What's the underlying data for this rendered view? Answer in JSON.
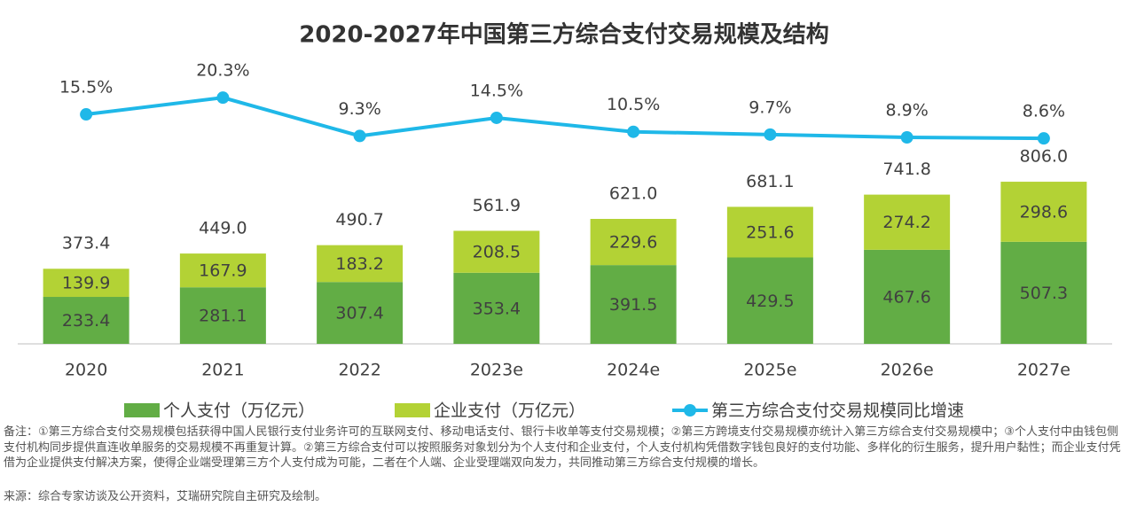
{
  "chart_data": {
    "type": "bar",
    "stacked": true,
    "title": "2020-2027年中国第三方综合支付交易规模及结构",
    "categories": [
      "2020",
      "2021",
      "2022",
      "2023e",
      "2024e",
      "2025e",
      "2026e",
      "2027e"
    ],
    "series": [
      {
        "name": "个人支付（万亿元）",
        "type": "bar",
        "color": "#62ad45",
        "values": [
          233.4,
          281.1,
          307.4,
          353.4,
          391.5,
          429.5,
          467.6,
          507.3
        ]
      },
      {
        "name": "企业支付（万亿元）",
        "type": "bar",
        "color": "#b3d235",
        "values": [
          139.9,
          167.9,
          183.2,
          208.5,
          229.6,
          251.6,
          274.2,
          298.6
        ]
      },
      {
        "name": "第三方综合支付交易规模同比增速",
        "type": "line",
        "axis": "y2",
        "color": "#1fb8e8",
        "values": [
          15.5,
          20.3,
          9.3,
          14.5,
          10.5,
          9.7,
          8.9,
          8.6
        ],
        "value_labels": [
          "15.5%",
          "20.3%",
          "9.3%",
          "14.5%",
          "10.5%",
          "9.7%",
          "8.9%",
          "8.6%"
        ]
      }
    ],
    "totals": {
      "values": [
        373.4,
        449.0,
        490.7,
        561.9,
        621.0,
        681.1,
        741.8,
        806.0
      ],
      "value_labels": [
        "373.4",
        "449.0",
        "490.7",
        "561.9",
        "621.0",
        "681.1",
        "741.8",
        "806.0"
      ]
    },
    "ylim": [
      0,
      1000
    ],
    "y2lim": [
      0,
      30
    ],
    "legend": "bottom",
    "note": "备注：①第三方综合支付交易规模包括获得中国人民银行支付业务许可的互联网支付、移动电话支付、银行卡收单等支付交易规模；②第三方跨境支付交易规模亦统计入第三方综合支付交易规模中；③个人支付中由钱包侧支付机构同步提供直连收单服务的交易规模不再重复计算。②第三方综合支付可以按照服务对象划分为个人支付和企业支付，个人支付机构凭借数字钱包良好的支付功能、多样化的衍生服务，提升用户黏性；而企业支付凭借为企业提供支付解决方案，使得企业端受理第三方个人支付成为可能，二者在个人端、企业受理端双向发力，共同推动第三方综合支付规模的增长。",
    "source": "来源：综合专家访谈及公开资料，艾瑞研究院自主研究及绘制。"
  }
}
